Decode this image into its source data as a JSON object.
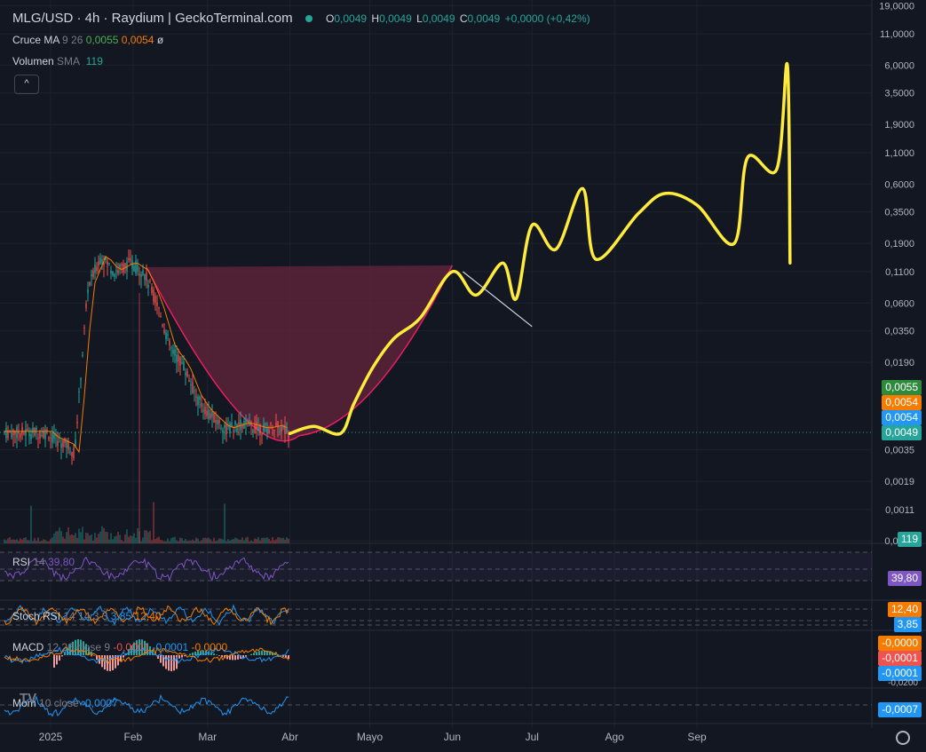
{
  "header": {
    "title": "MLG/USD · 4h · Raydium | GeckoTerminal.com",
    "ohlc": [
      {
        "k": "O",
        "v": "0,0049"
      },
      {
        "k": "H",
        "v": "0,0049"
      },
      {
        "k": "L",
        "v": "0,0049"
      },
      {
        "k": "C",
        "v": "0,0049"
      },
      {
        "k": "",
        "v": "+0,0000 (+0,42%)"
      }
    ]
  },
  "indicators": {
    "ma_cross": {
      "name": "Cruce MA",
      "params": "9 26",
      "fast": "0,0055",
      "slow": "0,0054",
      "null_sign": "ø"
    },
    "volume": {
      "name": "Volumen",
      "sma": "SMA",
      "value": "119"
    },
    "rsi": {
      "name": "RSI",
      "params": "14",
      "value": "39,80"
    },
    "stoch": {
      "name": "Stoch RSI",
      "params": "14 14 3 3",
      "k": "3,85",
      "d": "12,40"
    },
    "macd": {
      "name": "MACD",
      "params": "12 26 close 9",
      "hist": "-0,0001",
      "macd": "-0,0001",
      "signal": "-0,0000"
    },
    "mom": {
      "name": "Mom",
      "params": "10 close",
      "value": "-0,0007"
    }
  },
  "collapse_label": "^",
  "price_scale": [
    "19,0000",
    "11,0000",
    "6,0000",
    "3,5000",
    "1,9000",
    "1,1000",
    "0,6000",
    "0,3500",
    "0,1900",
    "0,1100",
    "0,0600",
    "0,0350",
    "0,0190",
    "0,0035",
    "0,0019",
    "0,0011",
    "0,0006"
  ],
  "badges": {
    "ma_fast": {
      "text": "0,0055",
      "color": "#2e8b3e"
    },
    "ma_slow": {
      "text": "0,0054",
      "color": "#f57c00"
    },
    "ma_blue": {
      "text": "0,0054",
      "color": "#2196f3"
    },
    "last": {
      "text": "0,0049",
      "color": "#26a69a"
    },
    "volume": {
      "text": "119",
      "color": "#26a69a"
    },
    "rsi": {
      "text": "39,80",
      "color": "#7e57c2"
    },
    "stoch_d": {
      "text": "12,40",
      "color": "#f57c00"
    },
    "stoch_k": {
      "text": "3,85",
      "color": "#2196f3"
    },
    "macd_signal": {
      "text": "-0,0000",
      "color": "#f57c00"
    },
    "macd_hist": {
      "text": "-0,0001",
      "color": "#ef5350"
    },
    "macd_line": {
      "text": "-0,0001",
      "color": "#2196f3"
    },
    "macd_axis": {
      "text": "-0,0200",
      "color": ""
    },
    "mom": {
      "text": "-0,0007",
      "color": "#2196f3"
    }
  },
  "time_axis": [
    "2025",
    "Feb",
    "Mar",
    "Abr",
    "Mayo",
    "Jun",
    "Jul",
    "Ago",
    "Sep"
  ],
  "colors": {
    "background": "#131722",
    "up": "#26a69a",
    "down": "#ef5350",
    "projection": "#ffeb3b",
    "cup_fill": "#5c2238",
    "cup_line": "#e91e63",
    "rsi": "#7e57c2"
  },
  "chart_data": {
    "type": "line",
    "log_scale": true,
    "grid": true,
    "price_history": {
      "x": [
        "2025-01-01",
        "2025-01-08",
        "2025-01-10",
        "2025-01-12",
        "2025-01-15",
        "2025-01-20",
        "2025-01-25",
        "2025-01-31",
        "2025-02-05",
        "2025-02-10",
        "2025-02-15",
        "2025-02-20",
        "2025-02-25",
        "2025-03-01",
        "2025-03-08",
        "2025-03-15",
        "2025-03-22",
        "2025-03-27",
        "2025-04-01"
      ],
      "y": [
        0.0045,
        0.0038,
        0.0032,
        0.012,
        0.08,
        0.15,
        0.11,
        0.13,
        0.11,
        0.06,
        0.025,
        0.018,
        0.0095,
        0.0072,
        0.0052,
        0.0058,
        0.0052,
        0.0055,
        0.0049
      ]
    },
    "projection": {
      "name": "",
      "x": [
        "2025-04-01",
        "2025-04-10",
        "2025-04-20",
        "2025-04-25",
        "2025-05-02",
        "2025-05-10",
        "2025-05-20",
        "2025-06-01",
        "2025-06-10",
        "2025-06-20",
        "2025-06-25",
        "2025-07-01",
        "2025-07-10",
        "2025-07-20",
        "2025-07-25",
        "2025-08-10",
        "2025-08-20",
        "2025-09-01",
        "2025-09-15",
        "2025-09-20",
        "2025-10-01",
        "2025-10-05",
        "2025-10-06"
      ],
      "y": [
        0.0048,
        0.0055,
        0.0048,
        0.0085,
        0.017,
        0.03,
        0.045,
        0.11,
        0.07,
        0.13,
        0.065,
        0.27,
        0.17,
        0.55,
        0.14,
        0.34,
        0.5,
        0.4,
        0.19,
        1.0,
        0.8,
        6.0,
        0.13
      ]
    },
    "cup": {
      "from": "2025-02-06",
      "to": "2025-06-01",
      "rim": 0.12,
      "bottom": 0.0046
    }
  }
}
